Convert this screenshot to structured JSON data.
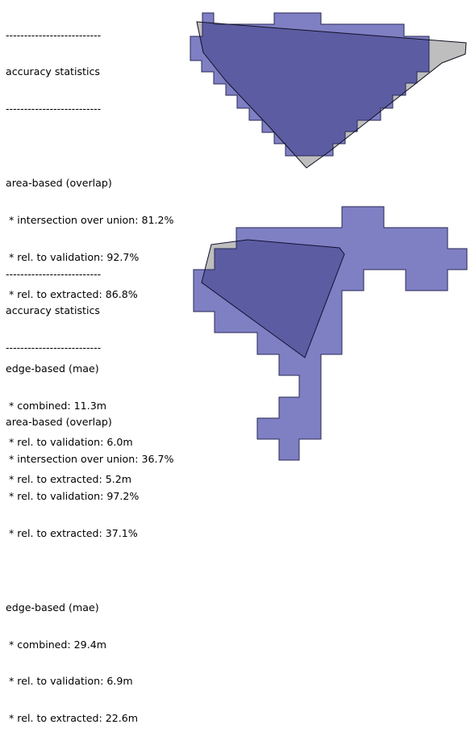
{
  "panels": [
    {
      "separator": "--------------------------",
      "title": "accuracy statistics",
      "area_heading": "area-based (overlap)",
      "iou": " * intersection over union: 81.2%",
      "rel_validation_area": " * rel. to validation: 92.7%",
      "rel_extracted_area": " * rel. to extracted: 86.8%",
      "edge_heading": "edge-based (mae)",
      "combined": " * combined: 11.3m",
      "rel_validation_edge": " * rel. to validation: 6.0m",
      "rel_extracted_edge": " * rel. to extracted: 5.2m"
    },
    {
      "separator": "--------------------------",
      "title": "accuracy statistics",
      "area_heading": "area-based (overlap)",
      "iou": " * intersection over union: 36.7%",
      "rel_validation_area": " * rel. to validation: 97.2%",
      "rel_extracted_area": " * rel. to extracted: 37.1%",
      "edge_heading": "edge-based (mae)",
      "combined": " * combined: 29.4m",
      "rel_validation_edge": " * rel. to validation: 6.9m",
      "rel_extracted_edge": " * rel. to extracted: 22.6m"
    }
  ],
  "colors": {
    "extracted_fill": "#7f7fc4",
    "validation_fill": "#bebebe",
    "overlap_fill": "#5c5ca3",
    "outline": "#2a2a55"
  }
}
